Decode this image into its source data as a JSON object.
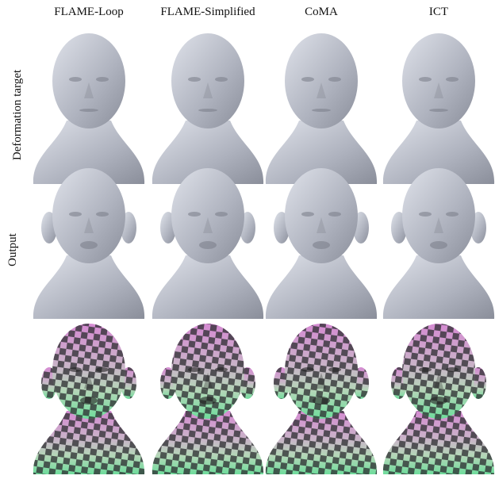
{
  "header": {
    "columns": [
      "FLAME-Loop",
      "FLAME-Simplified",
      "CoMA",
      "ICT"
    ]
  },
  "rows": [
    {
      "label": "Deformation target"
    },
    {
      "label": "Output"
    }
  ]
}
